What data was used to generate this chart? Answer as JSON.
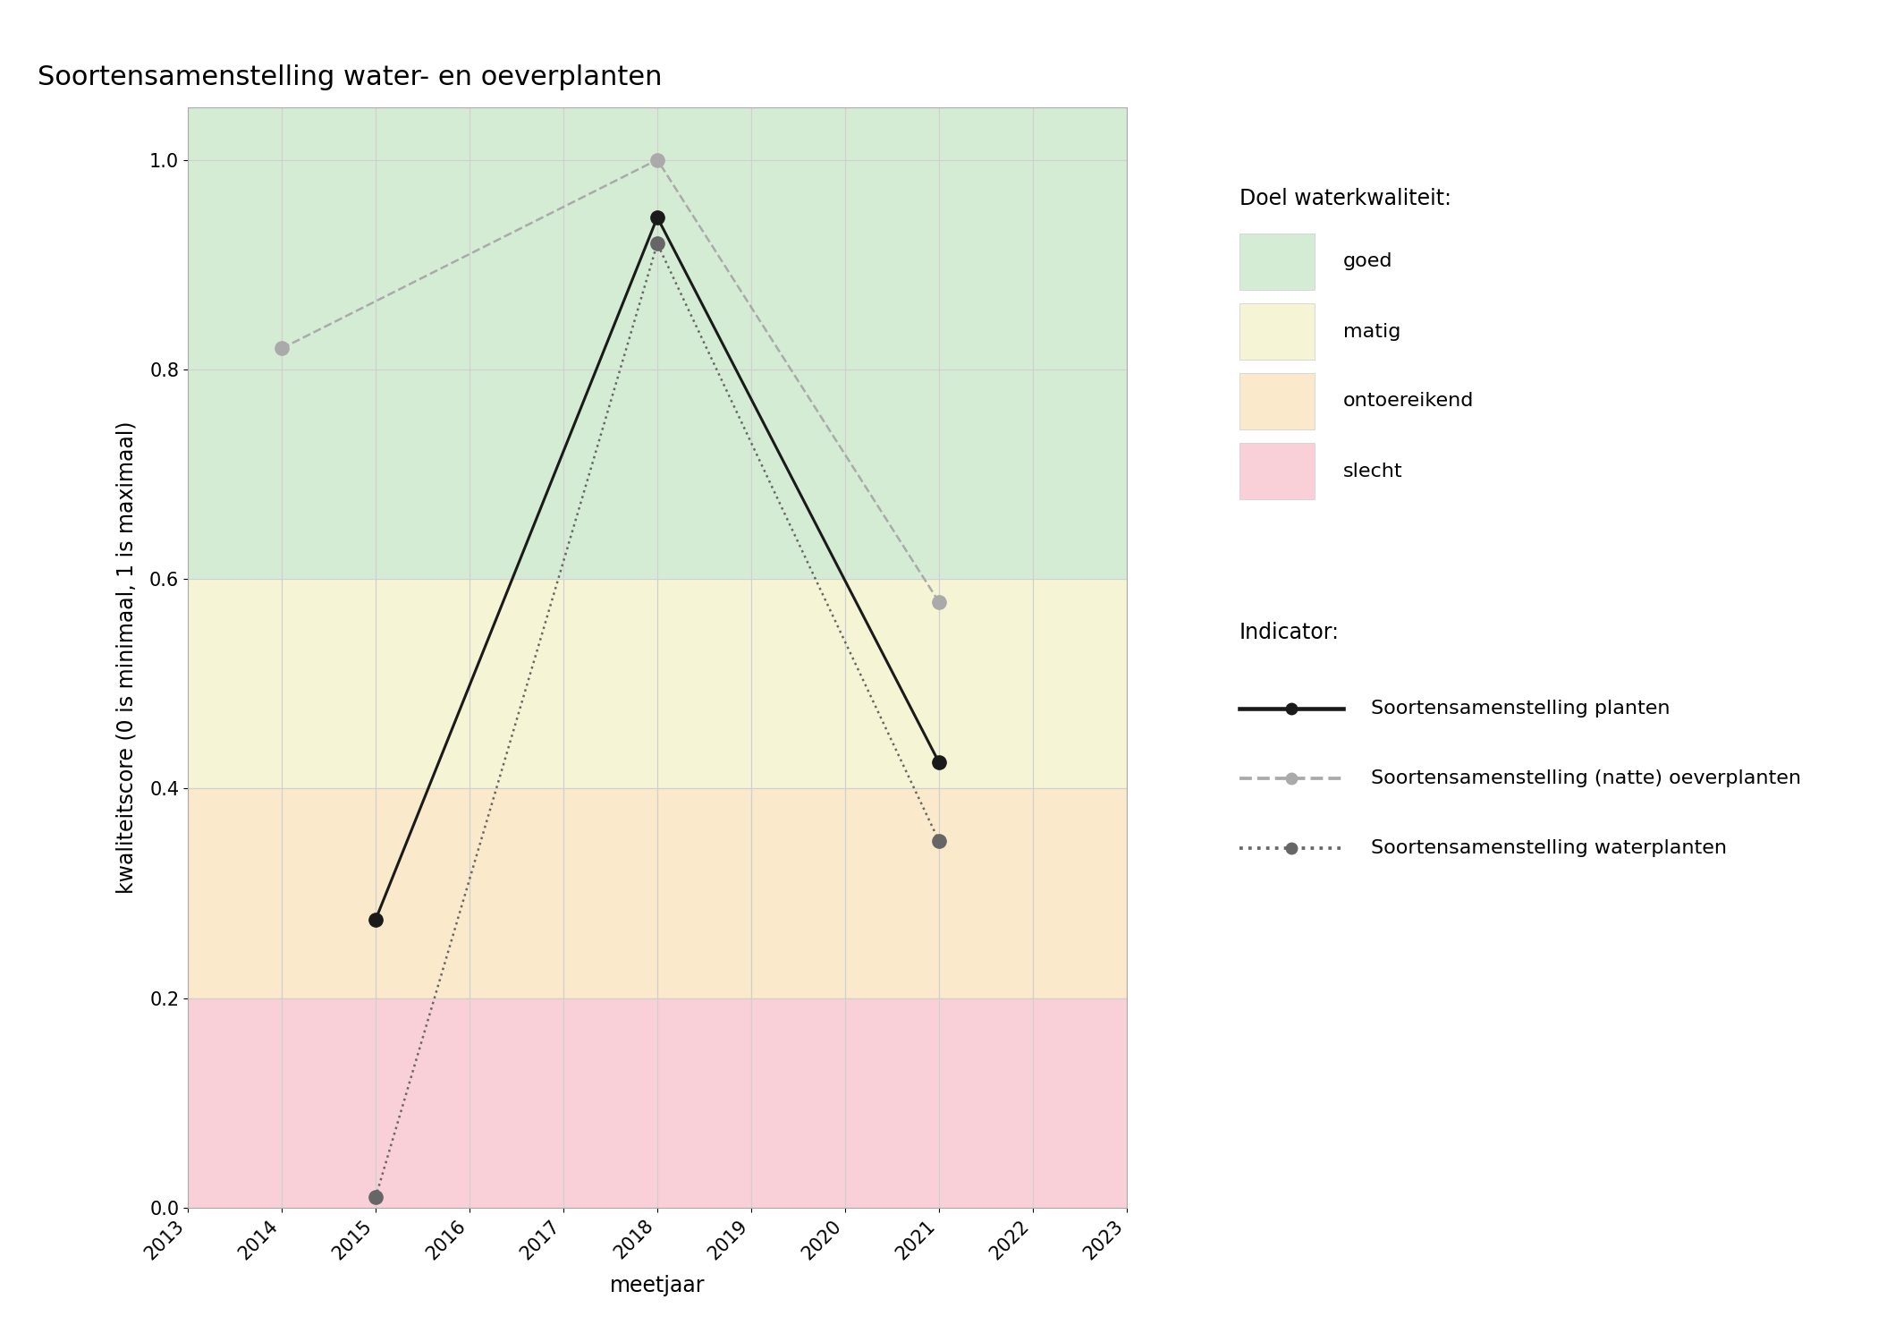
{
  "title": "Soortensamenstelling water- en oeverplanten",
  "xlabel": "meetjaar",
  "ylabel": "kwaliteitscore (0 is minimaal, 1 is maximaal)",
  "xlim": [
    2013,
    2023
  ],
  "ylim": [
    0.0,
    1.05
  ],
  "xticks": [
    2013,
    2014,
    2015,
    2016,
    2017,
    2018,
    2019,
    2020,
    2021,
    2022,
    2023
  ],
  "yticks": [
    0.0,
    0.2,
    0.4,
    0.6,
    0.8,
    1.0
  ],
  "bg_bands": [
    {
      "label": "goed",
      "color": "#d5ecd4",
      "ymin": 0.6,
      "ymax": 1.05
    },
    {
      "label": "matig",
      "color": "#f5f5d5",
      "ymin": 0.4,
      "ymax": 0.6
    },
    {
      "label": "ontoereikend",
      "color": "#faeacb",
      "ymin": 0.2,
      "ymax": 0.4
    },
    {
      "label": "slecht",
      "color": "#f9d0d8",
      "ymin": 0.0,
      "ymax": 0.2
    }
  ],
  "series": {
    "planten": {
      "x": [
        2015,
        2018,
        2021
      ],
      "y": [
        0.275,
        0.945,
        0.425
      ],
      "color": "#1a1a1a",
      "linestyle": "solid",
      "linewidth": 2.2,
      "markersize": 11
    },
    "oeverplanten": {
      "x": [
        2014,
        2018,
        2021
      ],
      "y": [
        0.82,
        1.0,
        0.578
      ],
      "color": "#aaaaaa",
      "linestyle": "dashed",
      "linewidth": 1.8,
      "markersize": 11
    },
    "waterplanten": {
      "x": [
        2015,
        2018,
        2021
      ],
      "y": [
        0.01,
        0.92,
        0.35
      ],
      "color": "#666666",
      "linestyle": "dotted",
      "linewidth": 1.8,
      "markersize": 11
    }
  },
  "legend_quality_title": "Doel waterkwaliteit:",
  "legend_quality_items": [
    {
      "label": "goed",
      "color": "#d5ecd4"
    },
    {
      "label": "matig",
      "color": "#f5f5d5"
    },
    {
      "label": "ontoereikend",
      "color": "#faeacb"
    },
    {
      "label": "slecht",
      "color": "#f9d0d8"
    }
  ],
  "legend_indicator_title": "Indicator:",
  "legend_indicator_items": [
    {
      "label": "Soortensamenstelling planten",
      "color": "#1a1a1a",
      "linestyle": "solid",
      "linewidth": 2.2,
      "markersize": 9
    },
    {
      "label": "Soortensamenstelling (natte) oeverplanten",
      "color": "#aaaaaa",
      "linestyle": "dashed",
      "linewidth": 1.8,
      "markersize": 9
    },
    {
      "label": "Soortensamenstelling waterplanten",
      "color": "#666666",
      "linestyle": "dotted",
      "linewidth": 1.8,
      "markersize": 9
    }
  ],
  "background_color": "#ffffff",
  "grid_color": "#d0d0d0",
  "title_fontsize": 22,
  "axis_label_fontsize": 17,
  "tick_fontsize": 15,
  "legend_fontsize": 16,
  "legend_title_fontsize": 17
}
